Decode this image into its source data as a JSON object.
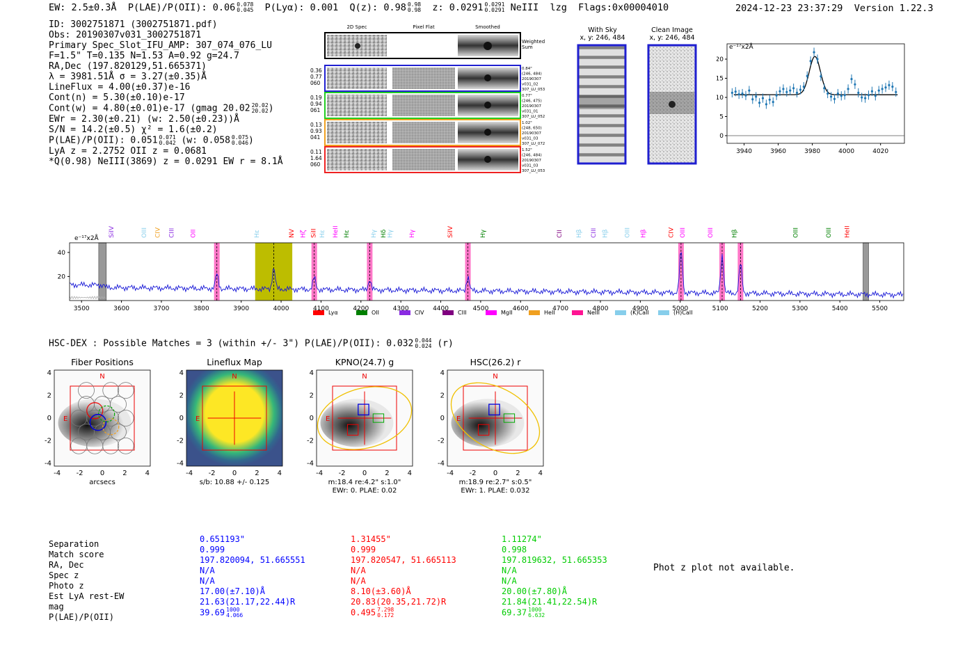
{
  "header": {
    "ew": "EW: 2.5±0.3Å",
    "plae_label": "P(LAE)/P(OII): 0.06",
    "plae_hi": "0.078",
    "plae_lo": "0.045",
    "plya": "P(Lyα): 0.001",
    "qz_label": "Q(z): 0.98",
    "qz_hi": "0.98",
    "qz_lo": "0.98",
    "z_label": "z: 0.0291",
    "z_hi": "0.0291",
    "z_lo": "0.0291",
    "line": "NeIII",
    "lzg": "lzg",
    "flags": "Flags:0x00004010",
    "timestamp": "2024-12-23 23:37:29",
    "version": "Version 1.22.3"
  },
  "info": {
    "lines": [
      "ID: 3002751871 (3002751871.pdf)",
      "Obs: 20190307v031_3002751871",
      "Primary Spec_Slot_IFU_AMP: 307_074_076_LU",
      "F=1.5\"  T=0.135  N=1.53  A=0.92  g=24.7",
      "RA,Dec (197.820129,51.665371)",
      "λ = 3981.51Å  σ = 3.27(±0.35)Å",
      "LineFlux = 4.00(±0.37)e-16",
      "Cont(n) = 5.30(±0.10)e-17"
    ],
    "contw": "Cont(w) = 4.80(±0.01)e-17 (gmag 20.02",
    "contw_hi": "20.02",
    "contw_lo": "20.02",
    "contw_end": ")",
    "ewr": "EWr = 2.30(±0.21) (w: 2.50(±0.23))Å",
    "sn": "S/N = 14.2(±0.5)  χ² = 1.6(±0.2)",
    "plae": "P(LAE)/P(OII): 0.051",
    "plae_hi": "0.071",
    "plae_lo": "0.042",
    "plae_w": "(w: 0.058",
    "plae_w_hi": "0.075",
    "plae_w_lo": "0.046",
    "plae_end": ")",
    "lyaz": "LyA z = 2.2752   OII z = 0.0681",
    "qline": "*Q(0.98) NeIII(3869) z = 0.0291  EW r = 8.1Å"
  },
  "cutouts": {
    "col_labels": [
      "2D Spec",
      "Pixel Flat",
      "Smoothed"
    ],
    "weighted_label": "Weighted Sum",
    "rows": [
      {
        "left": [
          "0.36",
          "0.77",
          "060"
        ],
        "right": [
          "0.84\"",
          "(246, 484)",
          "20190307",
          "v031_02",
          "307_LU_053"
        ],
        "color": "#1f1fd0"
      },
      {
        "left": [
          "0.19",
          "0.94",
          "061"
        ],
        "right": [
          "0.77\"",
          "(246, 475)",
          "20190307",
          "v031_01",
          "307_LU_052"
        ],
        "color": "#22cc22"
      },
      {
        "left": [
          "0.13",
          "0.93",
          "041"
        ],
        "right": [
          "1.02\"",
          "(248, 650)",
          "20190307",
          "v031_03",
          "307_LU_072"
        ],
        "color": "#f0a020"
      },
      {
        "left": [
          "0.11",
          "1.64",
          "060"
        ],
        "right": [
          "1.52\"",
          "(246, 484)",
          "20190307",
          "v031_03",
          "307_LU_053"
        ],
        "color": "#ee2222"
      }
    ],
    "with_sky": [
      "With Sky",
      "x, y: 246, 484"
    ],
    "clean": [
      "Clean Image",
      "x, y: 246, 484"
    ]
  },
  "fit_chart": {
    "type": "scatter",
    "unit_label": "e⁻¹⁷x2Å",
    "xlim": [
      3930,
      4034
    ],
    "ylim": [
      -2,
      24
    ],
    "xticks": [
      3940,
      3960,
      3980,
      4000,
      4020
    ],
    "yticks": [
      0,
      5,
      10,
      15,
      20
    ],
    "center": 3981.5,
    "sigma": 3.27,
    "amp": 10,
    "base": 10.7,
    "x": [
      3933,
      3935,
      3937,
      3939,
      3941,
      3943,
      3945,
      3947,
      3949,
      3951,
      3953,
      3955,
      3957,
      3959,
      3961,
      3963,
      3965,
      3967,
      3969,
      3971,
      3973,
      3975,
      3977,
      3979,
      3981,
      3983,
      3985,
      3987,
      3989,
      3991,
      3993,
      3995,
      3997,
      3999,
      4001,
      4003,
      4005,
      4007,
      4009,
      4011,
      4013,
      4015,
      4017,
      4019,
      4021,
      4023,
      4025,
      4027,
      4029
    ],
    "y": [
      11.2,
      11.5,
      10.8,
      11.0,
      10.5,
      11.8,
      9.5,
      10.2,
      8.6,
      9.8,
      8.2,
      9.4,
      8.8,
      10.5,
      11.6,
      12.2,
      11.4,
      11.8,
      12.4,
      11.2,
      12.0,
      12.8,
      15.6,
      19.5,
      21.8,
      20.0,
      15.5,
      12.4,
      11.0,
      10.2,
      9.6,
      11.0,
      10.4,
      10.6,
      12.2,
      14.8,
      13.4,
      11.2,
      10.0,
      9.8,
      10.6,
      11.6,
      10.4,
      11.8,
      12.2,
      12.6,
      13.2,
      12.8,
      11.4
    ]
  },
  "spectrum": {
    "unit_label": "e⁻¹⁷x2Å",
    "xlim": [
      3470,
      5560
    ],
    "ylim": [
      0,
      48
    ],
    "xticks": [
      3500,
      3600,
      3700,
      3800,
      3900,
      4000,
      4100,
      4200,
      4300,
      4400,
      4500,
      4600,
      4700,
      4800,
      4900,
      5000,
      5100,
      5200,
      5300,
      5400,
      5500
    ],
    "yticks": [
      20,
      40
    ],
    "obs_line": 3981.5,
    "yellow_band": [
      3935,
      4028
    ],
    "gray_bands": [
      [
        3543,
        3562
      ],
      [
        5458,
        5472
      ]
    ],
    "pink_lines": [
      3839,
      4083,
      4222,
      4468,
      5002,
      5105,
      5151
    ],
    "peaks": [
      [
        3839,
        12
      ],
      [
        3981.5,
        18
      ],
      [
        4083,
        10
      ],
      [
        4222,
        9
      ],
      [
        4468,
        12
      ],
      [
        5002,
        35
      ],
      [
        5105,
        32
      ],
      [
        5151,
        25
      ]
    ],
    "labels_row1": [
      {
        "x": 3550,
        "t": "SiIV",
        "c": "#8a2be2"
      },
      {
        "x": 3610,
        "t": "OIII",
        "c": "#87ceeb"
      },
      {
        "x": 3635,
        "t": "CIV",
        "c": "#f0a020"
      },
      {
        "x": 3660,
        "t": "CIII",
        "c": "#8a2be2"
      },
      {
        "x": 3700,
        "t": "OII",
        "c": "#ff00ff"
      },
      {
        "x": 3816,
        "t": "Hε",
        "c": "#87ceeb"
      },
      {
        "x": 3880,
        "t": "NV",
        "c": "#ff0000"
      },
      {
        "x": 3901,
        "t": "Hζ",
        "c": "#ff00ff"
      },
      {
        "x": 3920,
        "t": "SiII",
        "c": "#ff0000"
      },
      {
        "x": 3936,
        "t": "Hε",
        "c": "#87ceeb"
      },
      {
        "x": 3960,
        "t": "HeII",
        "c": "#ff00ff"
      },
      {
        "x": 3980,
        "t": "Hε",
        "c": "#008000"
      },
      {
        "x": 4030,
        "t": "Hγ",
        "c": "#87ceeb"
      },
      {
        "x": 4048,
        "t": "Hδ",
        "c": "#008000"
      },
      {
        "x": 4060,
        "t": "Hγ",
        "c": "#87ceeb"
      },
      {
        "x": 4100,
        "t": "Hγ",
        "c": "#ff00ff"
      },
      {
        "x": 4170,
        "t": "SiIV",
        "c": "#ff0000"
      },
      {
        "x": 4230,
        "t": "Hγ",
        "c": "#008000"
      },
      {
        "x": 4370,
        "t": "CII",
        "c": "#800080"
      },
      {
        "x": 4405,
        "t": "Hβ",
        "c": "#87ceeb"
      },
      {
        "x": 4432,
        "t": "CIII",
        "c": "#8a2be2"
      },
      {
        "x": 4453,
        "t": "Hβ",
        "c": "#87ceeb"
      },
      {
        "x": 4494,
        "t": "OIII",
        "c": "#87ceeb"
      },
      {
        "x": 4523,
        "t": "Hβ",
        "c": "#ff00ff"
      },
      {
        "x": 4574,
        "t": "CIV",
        "c": "#ff0000"
      },
      {
        "x": 4595,
        "t": "OIII",
        "c": "#ff00ff"
      },
      {
        "x": 4646,
        "t": "OIII",
        "c": "#ff00ff"
      },
      {
        "x": 4690,
        "t": "Hβ",
        "c": "#008000"
      },
      {
        "x": 4802,
        "t": "OIII",
        "c": "#008000"
      },
      {
        "x": 4862,
        "t": "OIII",
        "c": "#008000"
      },
      {
        "x": 4896,
        "t": "HeII",
        "c": "#ff0000"
      }
    ],
    "legend": [
      {
        "name": "Lyα",
        "c": "#ff0000"
      },
      {
        "name": "OII",
        "c": "#008000"
      },
      {
        "name": "CIV",
        "c": "#8a2be2"
      },
      {
        "name": "CIII",
        "c": "#800080"
      },
      {
        "name": "MgII",
        "c": "#ff00ff"
      },
      {
        "name": "HeII",
        "c": "#f0a020"
      },
      {
        "name": "NeIII",
        "c": "#ff1493"
      },
      {
        "name": "(K)CaII",
        "c": "#87ceeb"
      },
      {
        "name": "(H)CaII",
        "c": "#87ceeb"
      }
    ]
  },
  "hsc": {
    "title": "HSC-DEX : Possible Matches = 3 (within +/- 3\")  P(LAE)/P(OII): 0.032",
    "hi": "0.044",
    "lo": "0.024",
    "end": "(r)"
  },
  "stamps": [
    {
      "title": "Fiber Positions",
      "sub1": "arcsecs",
      "sub2": ""
    },
    {
      "title": "Lineflux Map",
      "sub1": "s/b: 10.88 +/- 0.125",
      "sub2": ""
    },
    {
      "title": "KPNO(24.7) g",
      "sub1": "m:18.4  re:4.2\"  s:1.0\"",
      "sub2": "EWr: 0. PLAE: 0.02"
    },
    {
      "title": "HSC(26.2) r",
      "sub1": "m:18.9  re:2.7\"  s:0.5\"",
      "sub2": "EWr: 1. PLAE: 0.032"
    }
  ],
  "stamp_axis": {
    "ticks": [
      "-4",
      "-2",
      "0",
      "2",
      "4"
    ],
    "n": "N",
    "e": "E"
  },
  "table": {
    "labels": [
      "Separation",
      "Match score",
      "RA, Dec",
      "Spec z",
      "Photo z",
      "Est LyA rest-EW",
      "mag",
      "P(LAE)/P(OII)"
    ],
    "cols": [
      {
        "color": "#0000ff",
        "vals": [
          "0.651193\"",
          "0.999",
          "197.820094, 51.665551",
          "N/A",
          "N/A",
          "17.00(±7.10)Å",
          "21.63(21.17,22.44)R"
        ],
        "plae": "39.69",
        "hi": "1000",
        "lo": "4.066"
      },
      {
        "color": "#ff0000",
        "vals": [
          "1.31455\"",
          "0.999",
          "197.820547, 51.665113",
          "N/A",
          "N/A",
          "8.10(±3.60)Å",
          "20.83(20.35,21.72)R"
        ],
        "plae": "0.495",
        "hi": "7.298",
        "lo": "0.172"
      },
      {
        "color": "#00cc00",
        "vals": [
          "1.11274\"",
          "0.998",
          "197.819632, 51.665353",
          "N/A",
          "N/A",
          "20.00(±7.80)Å",
          "21.84(21.41,22.54)R"
        ],
        "plae": "69.37",
        "hi": "1000",
        "lo": "6.632"
      }
    ],
    "photz_note": "Phot z plot not available."
  }
}
